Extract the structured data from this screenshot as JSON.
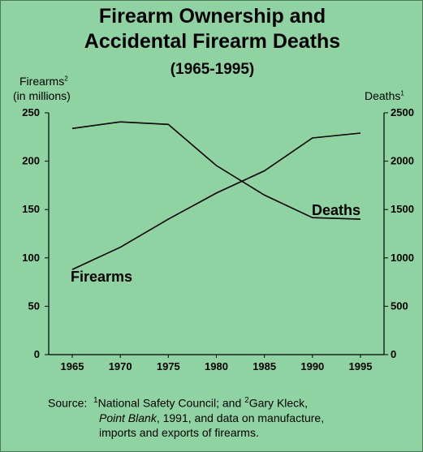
{
  "title_line1": "Firearm Ownership and",
  "title_line2": "Accidental Firearm Deaths",
  "title_line3": "(1965-1995)",
  "left_axis_label_1": "Firearms",
  "left_axis_sup": "2",
  "left_axis_label_2": "(in millions)",
  "right_axis_label": "Deaths",
  "right_axis_sup": "1",
  "source": {
    "prefix": "Source:",
    "sup1": "1",
    "part1": "National Safety Council; and ",
    "sup2": "2",
    "part2": "Gary Kleck,",
    "book": "Point Blank",
    "part3": ", 1991, and data on manufacture,",
    "line3": "imports and exports of firearms."
  },
  "chart_data": {
    "type": "line",
    "x": [
      1965,
      1970,
      1975,
      1980,
      1985,
      1990,
      1995
    ],
    "ylim_left": [
      0,
      250
    ],
    "ylim_right": [
      0,
      2500
    ],
    "left_ticks": [
      0,
      50,
      100,
      150,
      200,
      250
    ],
    "right_ticks": [
      0,
      500,
      1000,
      1500,
      2000,
      2500
    ],
    "series": [
      {
        "name": "Firearms",
        "axis": "left",
        "values": [
          88,
          111,
          140,
          167,
          190,
          224,
          229
        ]
      },
      {
        "name": "Deaths",
        "axis": "right",
        "values": [
          2338,
          2406,
          2380,
          1955,
          1649,
          1416,
          1400
        ]
      }
    ]
  }
}
